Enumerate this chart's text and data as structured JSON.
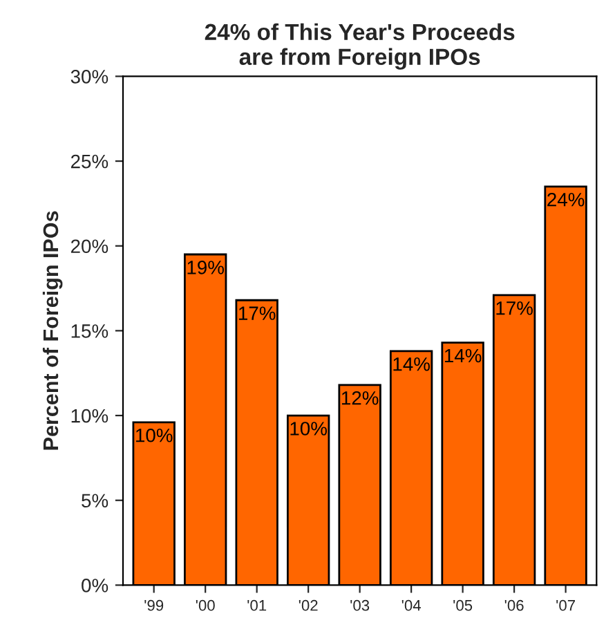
{
  "chart_data": {
    "type": "bar",
    "title": "24% of This Year's Proceeds\nare from Foreign IPOs",
    "ylabel": "Percent of Foreign IPOs",
    "categories": [
      "'99",
      "'00",
      "'01",
      "'02",
      "'03",
      "'04",
      "'05",
      "'06",
      "'07"
    ],
    "values": [
      9.6,
      19.5,
      16.8,
      10.0,
      11.8,
      13.8,
      14.3,
      17.1,
      23.5
    ],
    "value_labels": [
      "10%",
      "19%",
      "17%",
      "10%",
      "12%",
      "14%",
      "14%",
      "17%",
      "24%"
    ],
    "color": "#ff6600",
    "ylim": [
      0,
      30
    ],
    "yticks": [
      {
        "value": 0,
        "label": "0%"
      },
      {
        "value": 5,
        "label": "5%"
      },
      {
        "value": 10,
        "label": "10%"
      },
      {
        "value": 15,
        "label": "15%"
      },
      {
        "value": 20,
        "label": "20%"
      },
      {
        "value": 25,
        "label": "25%"
      },
      {
        "value": 30,
        "label": "30%"
      }
    ],
    "grid": false,
    "legend": false
  }
}
